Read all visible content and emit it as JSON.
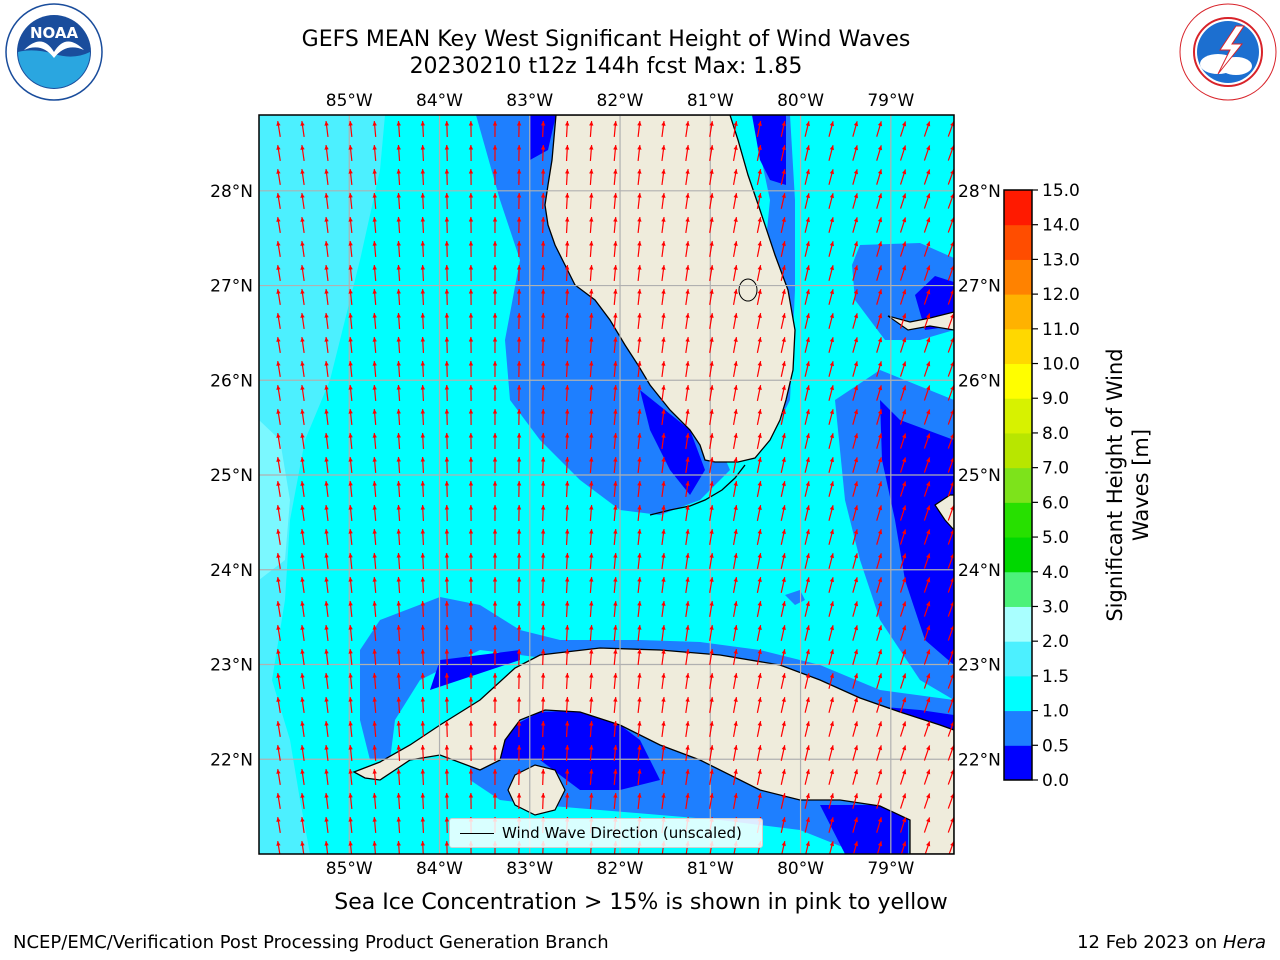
{
  "title": {
    "line1": "GEFS MEAN Key West Significant Height of Wind Waves",
    "line2": "20230210 t12z 144h fcst   Max: 1.85"
  },
  "logos": {
    "left": {
      "name": "noaa-logo",
      "text": "NOAA",
      "ring_text": "NATIONAL OCEANIC AND ATMOSPHERIC ADMINISTRATION · U.S. DEPARTMENT OF COMMERCE",
      "color": "#1a4d9c"
    },
    "right": {
      "name": "nws-logo",
      "ring_text": "NATIONAL WEATHER SERVICE",
      "color": "#d8232a"
    }
  },
  "map": {
    "lon_ticks": [
      "85°W",
      "84°W",
      "83°W",
      "82°W",
      "81°W",
      "80°W",
      "79°W"
    ],
    "lat_ticks": [
      "28°N",
      "27°N",
      "26°N",
      "25°N",
      "24°N",
      "23°N",
      "22°N"
    ],
    "extent": {
      "lon_min": -86.0,
      "lon_max": -78.3,
      "lat_min": 21.0,
      "lat_max": 28.8
    },
    "land_color": "#efecdc",
    "arrow_color": "#ff0000",
    "legend_label": "Wind Wave Direction (unscaled)"
  },
  "colorbar": {
    "label": "Significant Height of Wind Waves [m]",
    "ticks": [
      "0.0",
      "0.5",
      "1.0",
      "1.5",
      "2.0",
      "3.0",
      "4.0",
      "5.0",
      "6.0",
      "7.0",
      "8.0",
      "9.0",
      "10.0",
      "11.0",
      "12.0",
      "13.0",
      "14.0",
      "15.0"
    ],
    "colors": [
      "#0000ff",
      "#1e7fff",
      "#00ffff",
      "#4cf0ff",
      "#a9ffff",
      "#4cf27a",
      "#00d800",
      "#27e000",
      "#7de31b",
      "#b8e600",
      "#d7f200",
      "#fffe00",
      "#ffd800",
      "#ffb200",
      "#ff8200",
      "#ff4d00",
      "#ff1a00"
    ]
  },
  "footer": {
    "note": "Sea Ice Concentration > 15% is shown in pink to yellow",
    "left": "NCEP/EMC/Verification Post Processing Product Generation Branch",
    "right_prefix": "12 Feb 2023 on ",
    "right_host": "Hera"
  }
}
